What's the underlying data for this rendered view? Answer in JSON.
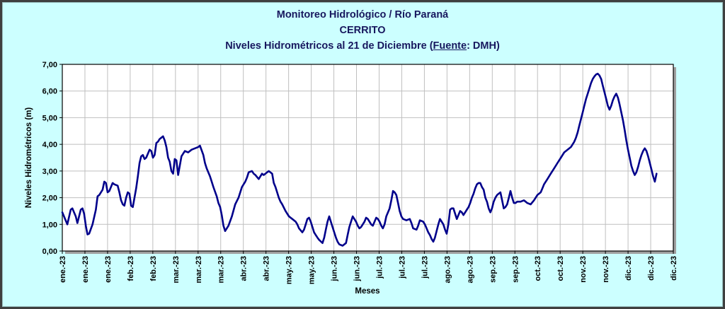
{
  "window": {
    "background": "#CCFFFF",
    "border_color": "#3F3F3F"
  },
  "titles": {
    "line1": "Monitoreo Hidrológico / Río Paraná",
    "line2": "CERRITO",
    "line3_pre": "Niveles Hidrométricos al 21 de Diciembre (",
    "line3_underline": "Fuente",
    "line3_post": ": DMH)"
  },
  "chart_data": {
    "type": "line",
    "title": "Monitoreo Hidrológico / Río Paraná",
    "subtitle": "CERRITO",
    "subtitle2": "Niveles Hidrométricos al 21 de Diciembre (Fuente: DMH)",
    "xlabel": "Meses",
    "ylabel": "Niveles Hidrométricos (m)",
    "ylim": [
      0,
      7
    ],
    "ytick_step": 1.0,
    "ytick_labels": [
      "0,00",
      "1,00",
      "2,00",
      "3,00",
      "4,00",
      "5,00",
      "6,00",
      "7,00"
    ],
    "xtick_labels": [
      "ene.-23",
      "ene.-23",
      "ene.-23",
      "feb.-23",
      "feb.-23",
      "mar.-23",
      "mar.-23",
      "mar.-23",
      "abr.-23",
      "abr.-23",
      "may.-23",
      "may.-23",
      "jun.-23",
      "jun.-23",
      "jul.-23",
      "jul.-23",
      "jul.-23",
      "ago.-23",
      "ago.-23",
      "sep.-23",
      "sep.-23",
      "oct.-23",
      "oct.-23",
      "nov.-23",
      "nov.-23",
      "dic.-23",
      "dic.-23",
      "dic.-23"
    ],
    "grid": true,
    "legend": "none",
    "x_span_days": 364,
    "x_unit": "día del año 2023 (0 = 1 ene, 354 = 21 dic)",
    "colors": {
      "background": "#CCFFFF",
      "plot_bg": "#FFFFFF",
      "title": "#17175E",
      "line": "#00008B",
      "grid": "#BFBFBF",
      "axis": "#000000"
    },
    "series": [
      {
        "name": "Niveles Hidrométricos (m)",
        "points": [
          [
            0,
            1.45
          ],
          [
            2,
            1.15
          ],
          [
            3,
            1.0
          ],
          [
            5,
            1.55
          ],
          [
            6,
            1.6
          ],
          [
            8,
            1.3
          ],
          [
            9,
            1.05
          ],
          [
            11,
            1.55
          ],
          [
            12,
            1.6
          ],
          [
            13,
            1.4
          ],
          [
            14,
            0.95
          ],
          [
            15,
            0.62
          ],
          [
            16,
            0.65
          ],
          [
            18,
            1.0
          ],
          [
            20,
            1.55
          ],
          [
            21,
            2.05
          ],
          [
            22,
            2.1
          ],
          [
            24,
            2.3
          ],
          [
            25,
            2.6
          ],
          [
            26,
            2.55
          ],
          [
            27,
            2.2
          ],
          [
            28,
            2.25
          ],
          [
            30,
            2.55
          ],
          [
            31,
            2.5
          ],
          [
            33,
            2.45
          ],
          [
            34,
            2.2
          ],
          [
            35,
            1.9
          ],
          [
            36,
            1.75
          ],
          [
            37,
            1.7
          ],
          [
            38,
            2.0
          ],
          [
            39,
            2.2
          ],
          [
            40,
            2.15
          ],
          [
            41,
            1.7
          ],
          [
            42,
            1.65
          ],
          [
            44,
            2.35
          ],
          [
            45,
            2.8
          ],
          [
            46,
            3.3
          ],
          [
            47,
            3.55
          ],
          [
            48,
            3.6
          ],
          [
            49,
            3.45
          ],
          [
            50,
            3.5
          ],
          [
            52,
            3.8
          ],
          [
            53,
            3.75
          ],
          [
            54,
            3.5
          ],
          [
            55,
            3.6
          ],
          [
            56,
            4.05
          ],
          [
            57,
            4.1
          ],
          [
            58,
            4.2
          ],
          [
            59,
            4.25
          ],
          [
            60,
            4.3
          ],
          [
            61,
            4.15
          ],
          [
            62,
            3.9
          ],
          [
            63,
            3.5
          ],
          [
            64,
            3.35
          ],
          [
            65,
            3.0
          ],
          [
            66,
            2.9
          ],
          [
            67,
            3.45
          ],
          [
            68,
            3.4
          ],
          [
            69,
            2.85
          ],
          [
            71,
            3.55
          ],
          [
            72,
            3.65
          ],
          [
            73,
            3.75
          ],
          [
            75,
            3.7
          ],
          [
            77,
            3.8
          ],
          [
            79,
            3.85
          ],
          [
            81,
            3.9
          ],
          [
            82,
            3.95
          ],
          [
            84,
            3.6
          ],
          [
            85,
            3.3
          ],
          [
            86,
            3.1
          ],
          [
            88,
            2.8
          ],
          [
            89,
            2.6
          ],
          [
            90,
            2.4
          ],
          [
            92,
            2.05
          ],
          [
            93,
            1.8
          ],
          [
            94,
            1.65
          ],
          [
            95,
            1.35
          ],
          [
            96,
            0.95
          ],
          [
            97,
            0.75
          ],
          [
            99,
            0.95
          ],
          [
            101,
            1.3
          ],
          [
            103,
            1.75
          ],
          [
            105,
            2.0
          ],
          [
            107,
            2.4
          ],
          [
            109,
            2.6
          ],
          [
            110,
            2.75
          ],
          [
            111,
            2.95
          ],
          [
            113,
            3.0
          ],
          [
            114,
            2.9
          ],
          [
            115,
            2.85
          ],
          [
            117,
            2.7
          ],
          [
            119,
            2.9
          ],
          [
            120,
            2.85
          ],
          [
            122,
            2.95
          ],
          [
            123,
            3.0
          ],
          [
            125,
            2.9
          ],
          [
            126,
            2.55
          ],
          [
            127,
            2.4
          ],
          [
            129,
            2.0
          ],
          [
            130,
            1.85
          ],
          [
            131,
            1.75
          ],
          [
            133,
            1.5
          ],
          [
            135,
            1.3
          ],
          [
            137,
            1.2
          ],
          [
            139,
            1.1
          ],
          [
            140,
            1.0
          ],
          [
            141,
            0.85
          ],
          [
            143,
            0.7
          ],
          [
            144,
            0.8
          ],
          [
            145,
            1.0
          ],
          [
            146,
            1.2
          ],
          [
            147,
            1.25
          ],
          [
            148,
            1.1
          ],
          [
            149,
            0.9
          ],
          [
            150,
            0.7
          ],
          [
            151,
            0.6
          ],
          [
            152,
            0.5
          ],
          [
            153,
            0.42
          ],
          [
            155,
            0.3
          ],
          [
            156,
            0.5
          ],
          [
            157,
            0.8
          ],
          [
            158,
            1.1
          ],
          [
            159,
            1.3
          ],
          [
            160,
            1.1
          ],
          [
            161,
            0.9
          ],
          [
            162,
            0.7
          ],
          [
            163,
            0.5
          ],
          [
            164,
            0.35
          ],
          [
            165,
            0.25
          ],
          [
            167,
            0.2
          ],
          [
            169,
            0.3
          ],
          [
            170,
            0.6
          ],
          [
            171,
            0.9
          ],
          [
            172,
            1.1
          ],
          [
            173,
            1.3
          ],
          [
            174,
            1.2
          ],
          [
            175,
            1.1
          ],
          [
            176,
            0.95
          ],
          [
            177,
            0.85
          ],
          [
            178,
            0.9
          ],
          [
            179,
            1.0
          ],
          [
            180,
            1.1
          ],
          [
            181,
            1.25
          ],
          [
            182,
            1.2
          ],
          [
            183,
            1.1
          ],
          [
            184,
            1.0
          ],
          [
            185,
            0.95
          ],
          [
            186,
            1.1
          ],
          [
            187,
            1.25
          ],
          [
            188,
            1.2
          ],
          [
            189,
            1.1
          ],
          [
            190,
            0.95
          ],
          [
            191,
            0.85
          ],
          [
            192,
            1.0
          ],
          [
            193,
            1.3
          ],
          [
            194,
            1.45
          ],
          [
            195,
            1.6
          ],
          [
            196,
            1.9
          ],
          [
            197,
            2.25
          ],
          [
            198,
            2.2
          ],
          [
            199,
            2.1
          ],
          [
            200,
            1.8
          ],
          [
            201,
            1.5
          ],
          [
            202,
            1.3
          ],
          [
            203,
            1.2
          ],
          [
            205,
            1.15
          ],
          [
            207,
            1.2
          ],
          [
            208,
            1.05
          ],
          [
            209,
            0.85
          ],
          [
            211,
            0.8
          ],
          [
            212,
            0.95
          ],
          [
            213,
            1.15
          ],
          [
            215,
            1.1
          ],
          [
            216,
            1.0
          ],
          [
            217,
            0.85
          ],
          [
            218,
            0.7
          ],
          [
            219,
            0.6
          ],
          [
            220,
            0.45
          ],
          [
            221,
            0.35
          ],
          [
            222,
            0.5
          ],
          [
            223,
            0.75
          ],
          [
            224,
            1.0
          ],
          [
            225,
            1.2
          ],
          [
            226,
            1.1
          ],
          [
            227,
            1.0
          ],
          [
            228,
            0.8
          ],
          [
            229,
            0.65
          ],
          [
            230,
            1.0
          ],
          [
            231,
            1.55
          ],
          [
            232,
            1.6
          ],
          [
            233,
            1.6
          ],
          [
            234,
            1.4
          ],
          [
            235,
            1.2
          ],
          [
            236,
            1.35
          ],
          [
            237,
            1.5
          ],
          [
            238,
            1.45
          ],
          [
            239,
            1.35
          ],
          [
            240,
            1.45
          ],
          [
            241,
            1.55
          ],
          [
            242,
            1.65
          ],
          [
            243,
            1.8
          ],
          [
            244,
            2.0
          ],
          [
            245,
            2.15
          ],
          [
            246,
            2.35
          ],
          [
            247,
            2.5
          ],
          [
            248,
            2.55
          ],
          [
            249,
            2.55
          ],
          [
            250,
            2.4
          ],
          [
            251,
            2.3
          ],
          [
            252,
            2.0
          ],
          [
            253,
            1.85
          ],
          [
            254,
            1.6
          ],
          [
            255,
            1.45
          ],
          [
            256,
            1.6
          ],
          [
            257,
            1.85
          ],
          [
            258,
            2.0
          ],
          [
            259,
            2.1
          ],
          [
            260,
            2.15
          ],
          [
            261,
            2.2
          ],
          [
            262,
            1.9
          ],
          [
            263,
            1.6
          ],
          [
            264,
            1.65
          ],
          [
            265,
            1.75
          ],
          [
            266,
            2.0
          ],
          [
            267,
            2.25
          ],
          [
            268,
            2.0
          ],
          [
            269,
            1.8
          ],
          [
            270,
            1.8
          ],
          [
            271,
            1.85
          ],
          [
            273,
            1.85
          ],
          [
            275,
            1.9
          ],
          [
            276,
            1.85
          ],
          [
            277,
            1.8
          ],
          [
            279,
            1.75
          ],
          [
            281,
            1.9
          ],
          [
            283,
            2.1
          ],
          [
            285,
            2.2
          ],
          [
            286,
            2.35
          ],
          [
            287,
            2.5
          ],
          [
            289,
            2.7
          ],
          [
            291,
            2.9
          ],
          [
            293,
            3.1
          ],
          [
            295,
            3.3
          ],
          [
            297,
            3.5
          ],
          [
            299,
            3.7
          ],
          [
            301,
            3.8
          ],
          [
            303,
            3.9
          ],
          [
            305,
            4.1
          ],
          [
            306,
            4.25
          ],
          [
            307,
            4.45
          ],
          [
            308,
            4.7
          ],
          [
            309,
            4.95
          ],
          [
            310,
            5.2
          ],
          [
            311,
            5.45
          ],
          [
            312,
            5.7
          ],
          [
            313,
            5.9
          ],
          [
            314,
            6.1
          ],
          [
            315,
            6.3
          ],
          [
            316,
            6.45
          ],
          [
            317,
            6.55
          ],
          [
            318,
            6.62
          ],
          [
            319,
            6.65
          ],
          [
            320,
            6.58
          ],
          [
            321,
            6.45
          ],
          [
            322,
            6.2
          ],
          [
            323,
            5.95
          ],
          [
            324,
            5.7
          ],
          [
            325,
            5.45
          ],
          [
            326,
            5.3
          ],
          [
            327,
            5.45
          ],
          [
            328,
            5.65
          ],
          [
            329,
            5.8
          ],
          [
            330,
            5.9
          ],
          [
            331,
            5.75
          ],
          [
            332,
            5.5
          ],
          [
            333,
            5.2
          ],
          [
            334,
            4.9
          ],
          [
            335,
            4.55
          ],
          [
            336,
            4.15
          ],
          [
            337,
            3.8
          ],
          [
            338,
            3.5
          ],
          [
            339,
            3.2
          ],
          [
            340,
            3.0
          ],
          [
            341,
            2.85
          ],
          [
            342,
            2.95
          ],
          [
            343,
            3.15
          ],
          [
            344,
            3.4
          ],
          [
            345,
            3.6
          ],
          [
            346,
            3.75
          ],
          [
            347,
            3.85
          ],
          [
            348,
            3.75
          ],
          [
            349,
            3.55
          ],
          [
            350,
            3.3
          ],
          [
            351,
            3.05
          ],
          [
            352,
            2.8
          ],
          [
            353,
            2.6
          ],
          [
            354,
            2.9
          ]
        ]
      }
    ]
  }
}
